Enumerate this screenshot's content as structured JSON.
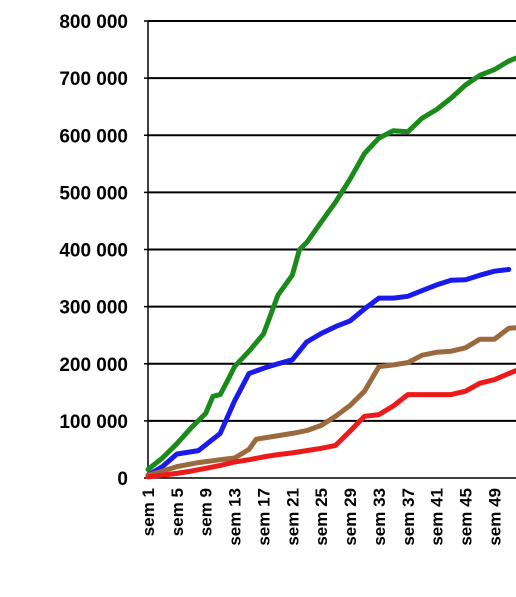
{
  "chart_data": {
    "type": "line",
    "title": "",
    "xlabel": "",
    "ylabel": "",
    "ylim": [
      0,
      800000
    ],
    "grid": true,
    "legend": "none",
    "y_ticks": [
      0,
      100000,
      200000,
      300000,
      400000,
      500000,
      600000,
      700000,
      800000
    ],
    "y_tick_labels": [
      "0",
      "100 000",
      "200 000",
      "300 000",
      "400 000",
      "500 000",
      "600 000",
      "700 000",
      "800 000"
    ],
    "x_ticks": [
      1,
      5,
      9,
      13,
      17,
      21,
      25,
      29,
      33,
      37,
      41,
      45,
      49
    ],
    "x_tick_labels": [
      "sem 1",
      "sem 5",
      "sem 9",
      "sem 13",
      "sem 17",
      "sem 21",
      "sem 25",
      "sem 29",
      "sem 33",
      "sem 37",
      "sem 41",
      "sem 45",
      "sem 49"
    ],
    "xlim": [
      1,
      52
    ],
    "series": [
      {
        "color": "#1a8a1a",
        "x": [
          1,
          3,
          5,
          7,
          9,
          10,
          11,
          12,
          13,
          15,
          17,
          19,
          21,
          22,
          23,
          25,
          27,
          29,
          31,
          33,
          35,
          37,
          39,
          41,
          43,
          45,
          47,
          49,
          51,
          52
        ],
        "y": [
          15000,
          35000,
          60000,
          88000,
          113000,
          143000,
          146000,
          170000,
          195000,
          222000,
          252000,
          320000,
          355000,
          400000,
          412000,
          448000,
          483000,
          523000,
          568000,
          595000,
          608000,
          606000,
          630000,
          645000,
          665000,
          688000,
          705000,
          715000,
          730000,
          735000
        ]
      },
      {
        "color": "#1a1aee",
        "x": [
          1,
          3,
          5,
          8,
          11,
          13,
          15,
          17,
          19,
          21,
          23,
          25,
          27,
          29,
          31,
          33,
          35,
          37,
          39,
          41,
          43,
          45,
          47,
          49,
          51
        ],
        "y": [
          5000,
          20000,
          42000,
          48000,
          78000,
          135000,
          183000,
          192000,
          200000,
          207000,
          238000,
          253000,
          265000,
          275000,
          296000,
          315000,
          315000,
          318000,
          328000,
          338000,
          346000,
          347000,
          355000,
          362000,
          365000
        ]
      },
      {
        "color": "#9a6a3c",
        "x": [
          1,
          3,
          5,
          8,
          11,
          13,
          15,
          16,
          18,
          21,
          23,
          25,
          27,
          29,
          31,
          33,
          35,
          37,
          39,
          41,
          43,
          45,
          47,
          49,
          51,
          52
        ],
        "y": [
          5000,
          12000,
          20000,
          27000,
          32000,
          35000,
          50000,
          68000,
          72000,
          78000,
          83000,
          92000,
          108000,
          127000,
          152000,
          195000,
          198000,
          202000,
          215000,
          220000,
          222000,
          228000,
          243000,
          243000,
          262000,
          263000
        ]
      },
      {
        "color": "#ee1a1a",
        "x": [
          1,
          3,
          5,
          7,
          9,
          11,
          13,
          15,
          17,
          19,
          21,
          23,
          25,
          27,
          29,
          31,
          33,
          35,
          37,
          39,
          41,
          43,
          45,
          47,
          49,
          51,
          52
        ],
        "y": [
          2000,
          5000,
          8000,
          12000,
          17000,
          22000,
          28000,
          32000,
          37000,
          41000,
          44000,
          48000,
          52000,
          57000,
          82000,
          108000,
          111000,
          126000,
          146000,
          146000,
          146000,
          146000,
          152000,
          166000,
          172000,
          183000,
          188000
        ]
      }
    ]
  }
}
